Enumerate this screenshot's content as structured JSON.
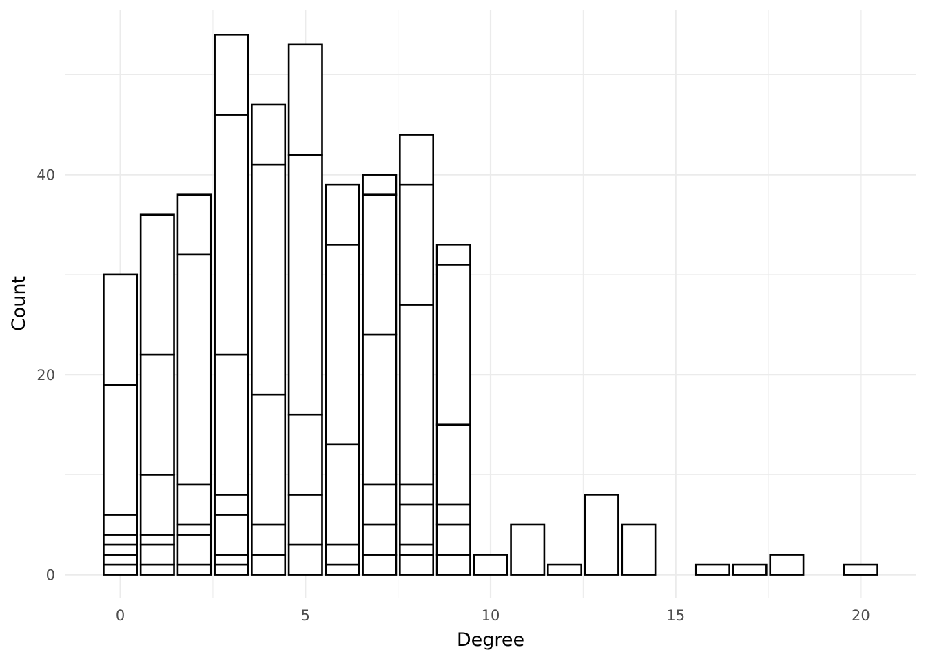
{
  "chart_data": {
    "type": "bar",
    "stacked": true,
    "title": "",
    "xlabel": "Degree",
    "ylabel": "Count",
    "xlim": [
      -1.5,
      21.5
    ],
    "ylim": [
      -2.3,
      56.5
    ],
    "x_ticks": [
      0,
      5,
      10,
      15,
      20
    ],
    "y_ticks": [
      0,
      20,
      40
    ],
    "grid": true,
    "legend": "none",
    "colors": {
      "bar_fill": "#ffffff",
      "bar_outline": "#000000",
      "grid": "#ebebeb",
      "tick_text": "#4d4d4d"
    },
    "bars": [
      {
        "x": 0,
        "cumulative": [
          1,
          2,
          3,
          4,
          6,
          19,
          30
        ]
      },
      {
        "x": 1,
        "cumulative": [
          1,
          3,
          4,
          10,
          22,
          36
        ]
      },
      {
        "x": 2,
        "cumulative": [
          1,
          4,
          5,
          9,
          32,
          38
        ]
      },
      {
        "x": 3,
        "cumulative": [
          1,
          2,
          6,
          8,
          22,
          46,
          54
        ]
      },
      {
        "x": 4,
        "cumulative": [
          2,
          5,
          18,
          41,
          47
        ]
      },
      {
        "x": 5,
        "cumulative": [
          3,
          8,
          16,
          42,
          53
        ]
      },
      {
        "x": 6,
        "cumulative": [
          1,
          3,
          13,
          33,
          39
        ]
      },
      {
        "x": 7,
        "cumulative": [
          2,
          5,
          9,
          24,
          38,
          40
        ]
      },
      {
        "x": 8,
        "cumulative": [
          2,
          3,
          7,
          9,
          27,
          39,
          44
        ]
      },
      {
        "x": 9,
        "cumulative": [
          2,
          5,
          7,
          15,
          31,
          33
        ]
      },
      {
        "x": 10,
        "cumulative": [
          2
        ]
      },
      {
        "x": 11,
        "cumulative": [
          5
        ]
      },
      {
        "x": 12,
        "cumulative": [
          1
        ]
      },
      {
        "x": 13,
        "cumulative": [
          8
        ]
      },
      {
        "x": 14,
        "cumulative": [
          5
        ]
      },
      {
        "x": 16,
        "cumulative": [
          1
        ]
      },
      {
        "x": 17,
        "cumulative": [
          1
        ]
      },
      {
        "x": 18,
        "cumulative": [
          2
        ]
      },
      {
        "x": 20,
        "cumulative": [
          1
        ]
      }
    ]
  }
}
